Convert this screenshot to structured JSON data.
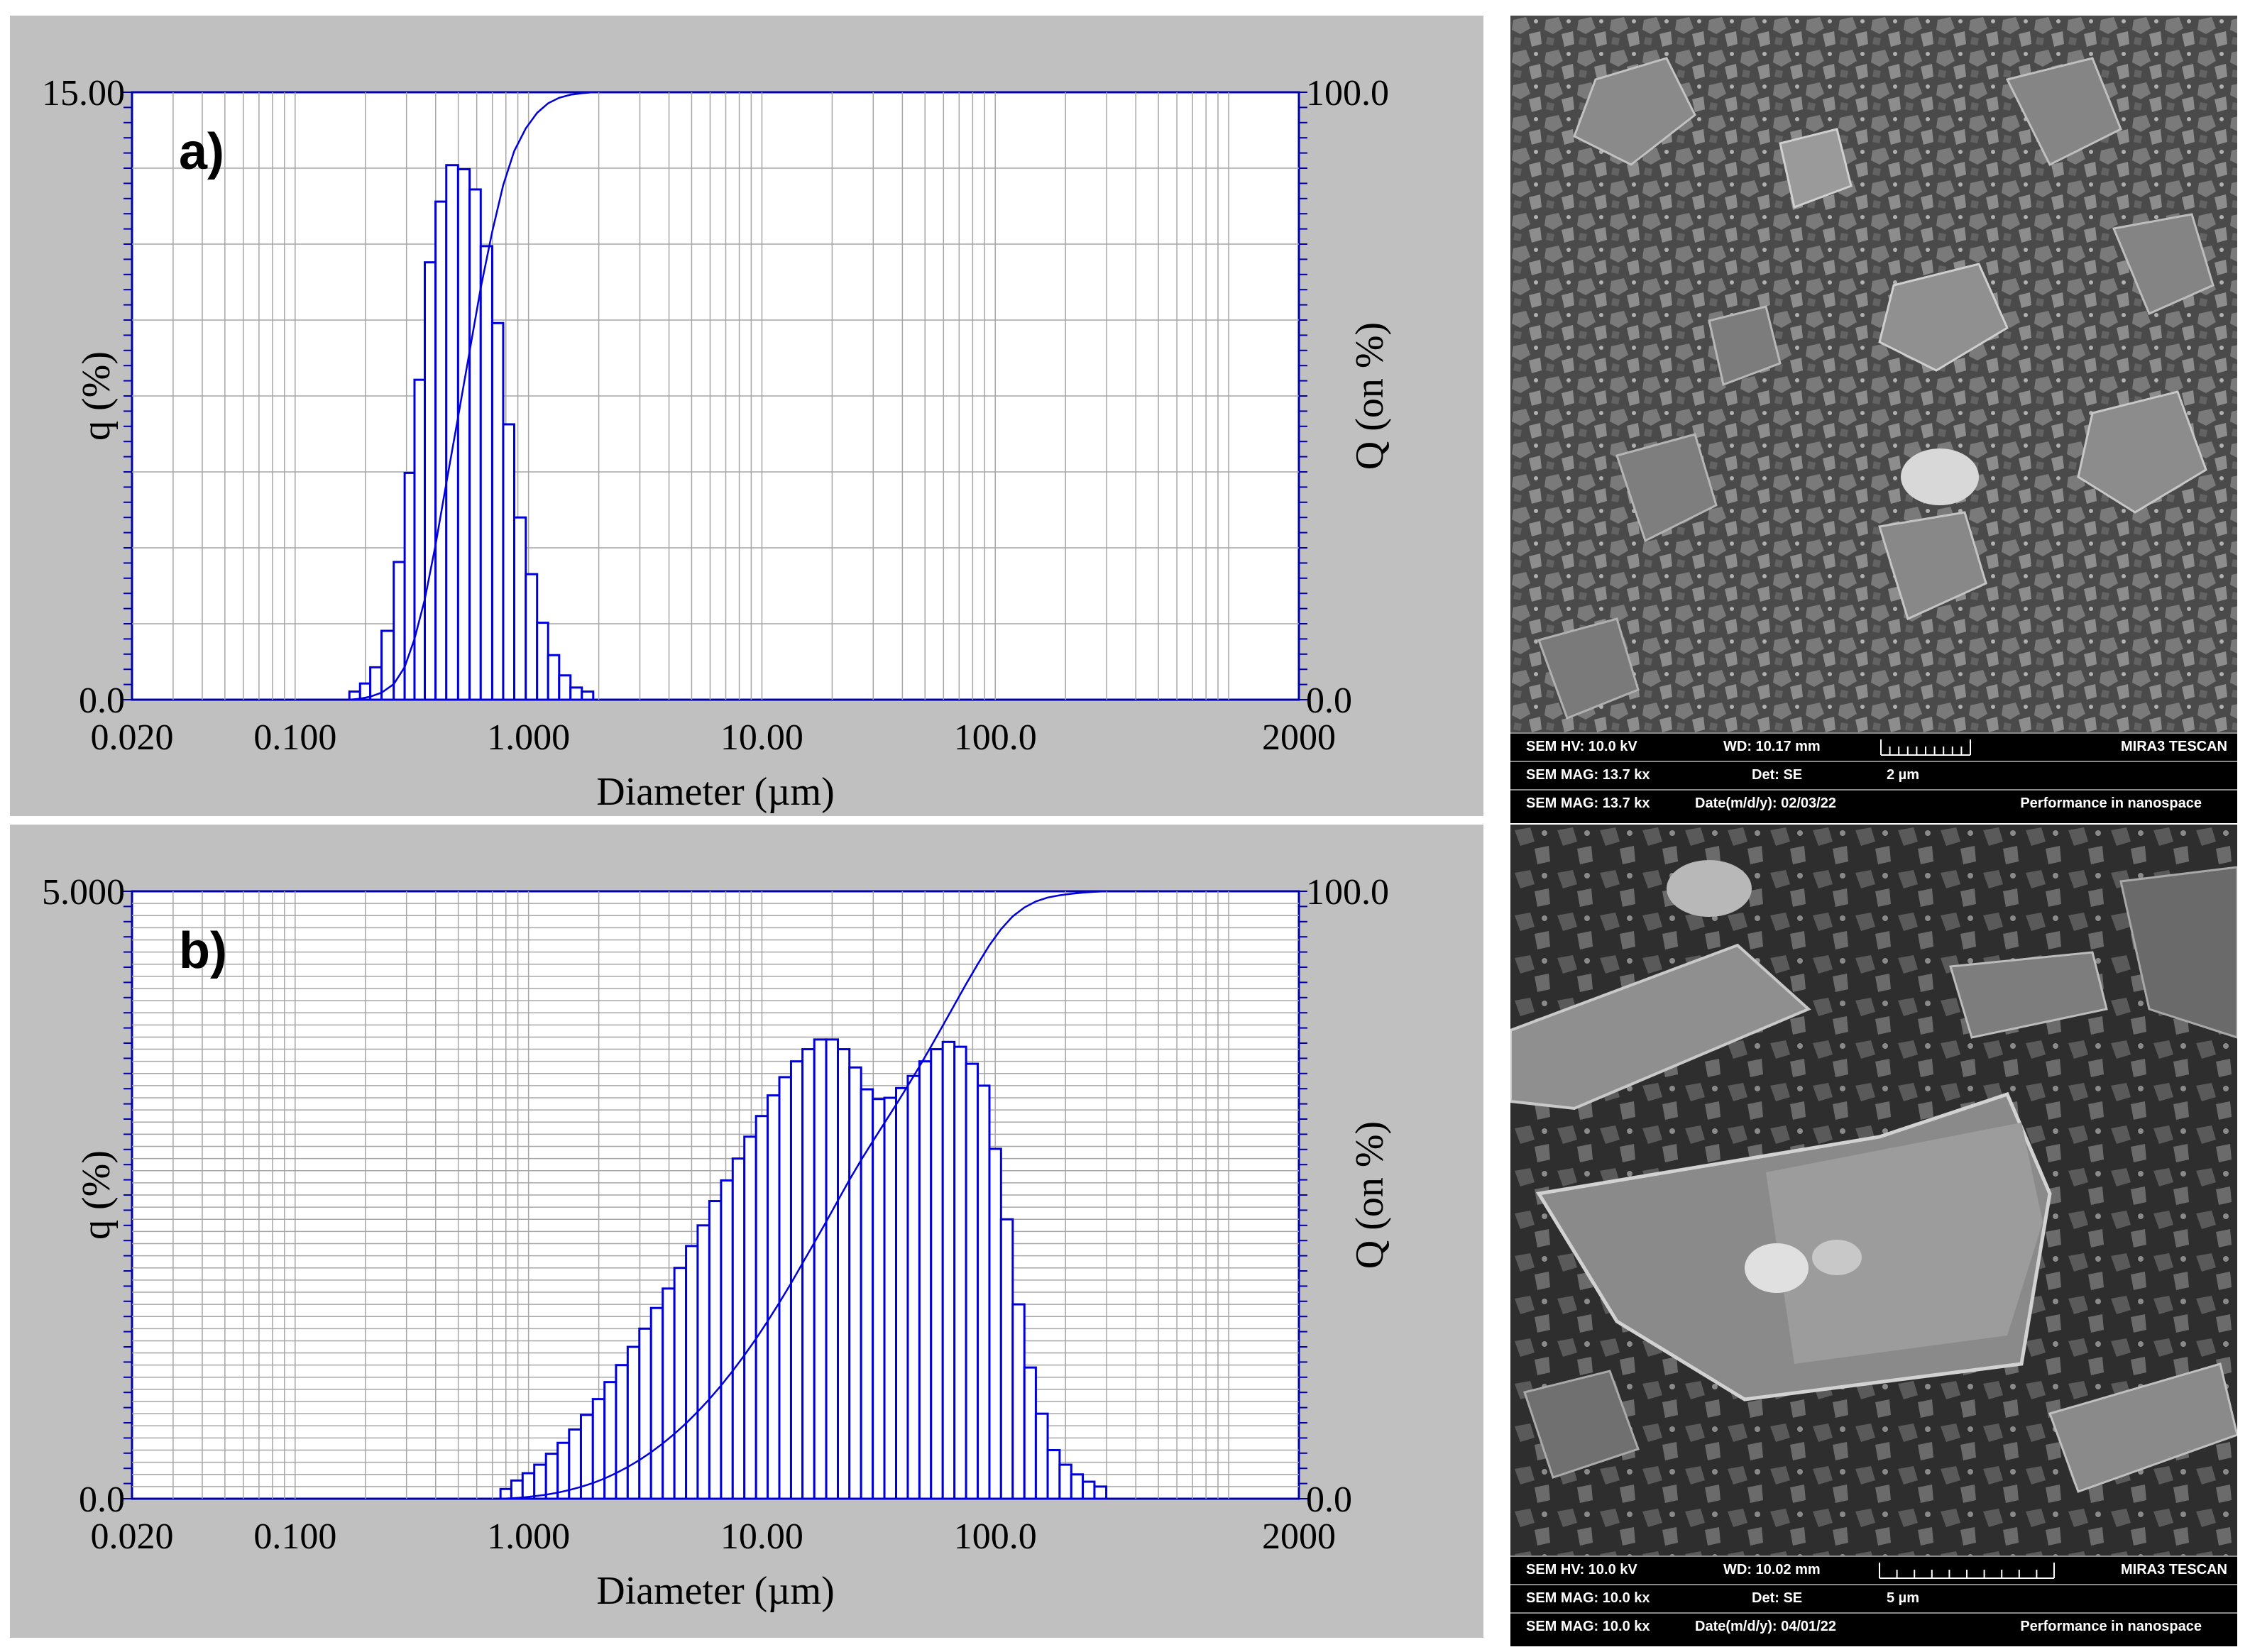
{
  "colors": {
    "bars": "#0000dd",
    "frame": "#0000aa",
    "background": "#c0c0c0",
    "grid": "#a6a6a6"
  },
  "chart_data": [
    {
      "type": "bar",
      "panel_label": "a)",
      "x_scale": "log",
      "xlim": [
        0.02,
        2000
      ],
      "xticks": [
        {
          "value": 0.02,
          "label": "0.020"
        },
        {
          "value": 0.1,
          "label": "0.100"
        },
        {
          "value": 1,
          "label": "1.000"
        },
        {
          "value": 10,
          "label": "10.00"
        },
        {
          "value": 100,
          "label": "100.0"
        },
        {
          "value": 2000,
          "label": "2000"
        }
      ],
      "xlabel": "Diameter (µm)",
      "ylabel": "q (%)",
      "ylim": [
        0,
        15
      ],
      "y_top_label": "15.00",
      "y_bottom_label": "0.0",
      "ylabel_right": "Q (on %)",
      "y_right_top_label": "100.0",
      "y_right_bottom_label": "0.0",
      "bins": [
        {
          "x": 0.18,
          "q": 0.2
        },
        {
          "x": 0.2,
          "q": 0.4
        },
        {
          "x": 0.22,
          "q": 0.8
        },
        {
          "x": 0.25,
          "q": 1.7
        },
        {
          "x": 0.28,
          "q": 3.4
        },
        {
          "x": 0.31,
          "q": 5.6
        },
        {
          "x": 0.34,
          "q": 7.9
        },
        {
          "x": 0.38,
          "q": 10.8
        },
        {
          "x": 0.42,
          "q": 12.3
        },
        {
          "x": 0.47,
          "q": 13.2
        },
        {
          "x": 0.53,
          "q": 13.1
        },
        {
          "x": 0.59,
          "q": 12.6
        },
        {
          "x": 0.66,
          "q": 11.2
        },
        {
          "x": 0.74,
          "q": 9.3
        },
        {
          "x": 0.82,
          "q": 6.8
        },
        {
          "x": 0.92,
          "q": 4.5
        },
        {
          "x": 1.03,
          "q": 3.1
        },
        {
          "x": 1.15,
          "q": 1.9
        },
        {
          "x": 1.28,
          "q": 1.1
        },
        {
          "x": 1.43,
          "q": 0.6
        },
        {
          "x": 1.6,
          "q": 0.3
        },
        {
          "x": 1.79,
          "q": 0.2
        }
      ]
    },
    {
      "type": "bar",
      "panel_label": "b)",
      "x_scale": "log",
      "xlim": [
        0.02,
        2000
      ],
      "xticks": [
        {
          "value": 0.02,
          "label": "0.020"
        },
        {
          "value": 0.1,
          "label": "0.100"
        },
        {
          "value": 1,
          "label": "1.000"
        },
        {
          "value": 10,
          "label": "10.00"
        },
        {
          "value": 100,
          "label": "100.0"
        },
        {
          "value": 2000,
          "label": "2000"
        }
      ],
      "xlabel": "Diameter (µm)",
      "ylabel": "q (%)",
      "ylim": [
        0,
        5
      ],
      "y_top_label": "5.000",
      "y_bottom_label": "0.0",
      "ylabel_right": "Q (on %)",
      "y_right_top_label": "100.0",
      "y_right_bottom_label": "0.0",
      "bins": [
        {
          "x": 0.8,
          "q": 0.08
        },
        {
          "x": 0.89,
          "q": 0.15
        },
        {
          "x": 1.0,
          "q": 0.21
        },
        {
          "x": 1.12,
          "q": 0.28
        },
        {
          "x": 1.26,
          "q": 0.37
        },
        {
          "x": 1.41,
          "q": 0.46
        },
        {
          "x": 1.58,
          "q": 0.57
        },
        {
          "x": 1.78,
          "q": 0.69
        },
        {
          "x": 2.0,
          "q": 0.82
        },
        {
          "x": 2.24,
          "q": 0.96
        },
        {
          "x": 2.51,
          "q": 1.1
        },
        {
          "x": 2.82,
          "q": 1.25
        },
        {
          "x": 3.16,
          "q": 1.4
        },
        {
          "x": 3.55,
          "q": 1.57
        },
        {
          "x": 3.98,
          "q": 1.73
        },
        {
          "x": 4.47,
          "q": 1.9
        },
        {
          "x": 5.01,
          "q": 2.08
        },
        {
          "x": 5.62,
          "q": 2.25
        },
        {
          "x": 6.31,
          "q": 2.45
        },
        {
          "x": 7.08,
          "q": 2.62
        },
        {
          "x": 7.94,
          "q": 2.8
        },
        {
          "x": 8.91,
          "q": 2.98
        },
        {
          "x": 10.0,
          "q": 3.15
        },
        {
          "x": 11.2,
          "q": 3.32
        },
        {
          "x": 12.6,
          "q": 3.47
        },
        {
          "x": 14.1,
          "q": 3.6
        },
        {
          "x": 15.8,
          "q": 3.7
        },
        {
          "x": 17.8,
          "q": 3.78
        },
        {
          "x": 20.0,
          "q": 3.78
        },
        {
          "x": 22.4,
          "q": 3.7
        },
        {
          "x": 25.1,
          "q": 3.55
        },
        {
          "x": 28.2,
          "q": 3.37
        },
        {
          "x": 31.6,
          "q": 3.29
        },
        {
          "x": 35.5,
          "q": 3.3
        },
        {
          "x": 39.8,
          "q": 3.38
        },
        {
          "x": 44.7,
          "q": 3.48
        },
        {
          "x": 50.1,
          "q": 3.6
        },
        {
          "x": 56.2,
          "q": 3.7
        },
        {
          "x": 63.1,
          "q": 3.76
        },
        {
          "x": 70.8,
          "q": 3.72
        },
        {
          "x": 79.4,
          "q": 3.58
        },
        {
          "x": 89.1,
          "q": 3.4
        },
        {
          "x": 100,
          "q": 2.88
        },
        {
          "x": 112,
          "q": 2.3
        },
        {
          "x": 126,
          "q": 1.6
        },
        {
          "x": 141,
          "q": 1.08
        },
        {
          "x": 158,
          "q": 0.7
        },
        {
          "x": 178,
          "q": 0.4
        },
        {
          "x": 200,
          "q": 0.28
        },
        {
          "x": 224,
          "q": 0.2
        },
        {
          "x": 251,
          "q": 0.14
        },
        {
          "x": 282,
          "q": 0.1
        }
      ]
    }
  ],
  "sem_a": {
    "row1": [
      "SEM HV: 10.0 kV",
      "WD: 10.17 mm",
      "MIRA3 TESCAN"
    ],
    "row2": [
      "SEM MAG: 13.7 kx",
      "Det: SE",
      "2 µm"
    ],
    "row3": [
      "SEM MAG: 13.7 kx",
      "Date(m/d/y): 02/03/22",
      "Performance in nanospace"
    ],
    "scale": {
      "ticks": 10
    }
  },
  "sem_b": {
    "row1": [
      "SEM HV: 10.0 kV",
      "WD: 10.02 mm",
      "MIRA3 TESCAN"
    ],
    "row2": [
      "SEM MAG: 10.0 kx",
      "Det: SE",
      "5 µm"
    ],
    "row3": [
      "SEM MAG: 10.0 kx",
      "Date(m/d/y): 04/01/22",
      "Performance in nanospace"
    ],
    "scale": {
      "ticks": 10
    }
  }
}
